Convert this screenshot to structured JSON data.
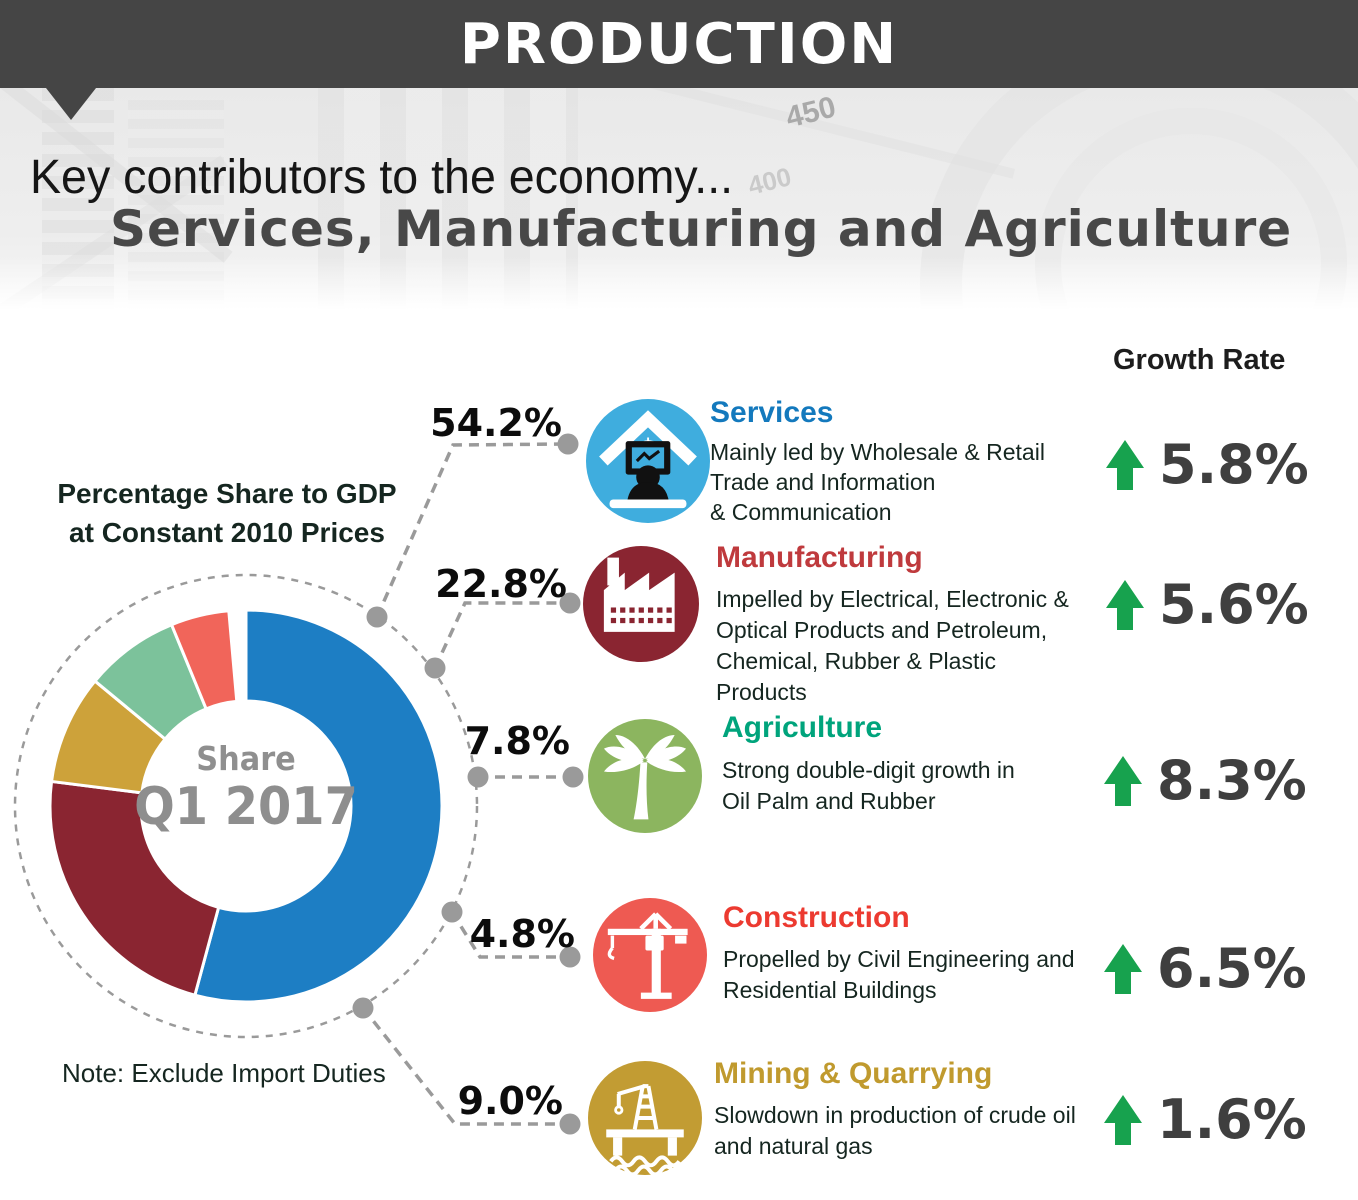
{
  "header": {
    "banner": "PRODUCTION",
    "headline_thin": "Key contributors to the economy...",
    "headline_bold": "Services, Manufacturing and Agriculture",
    "photo_figures": {
      "num1": "450",
      "num2": "400"
    }
  },
  "chart_heading": {
    "line1": "Percentage Share to GDP",
    "line2": "at Constant 2010 Prices"
  },
  "donut_center": {
    "line1": "Share",
    "line2": "Q1 2017"
  },
  "note": "Note: Exclude Import Duties",
  "growth_header": "Growth Rate",
  "sectors": [
    {
      "id": "services",
      "title": "Services",
      "title_color": "#1379bd",
      "icon_color": "#3fadde",
      "share_label": "54.2%",
      "growth_label": "5.8%",
      "description": "Mainly led by Wholesale & Retail\nTrade and Information\n& Communication"
    },
    {
      "id": "manufacturing",
      "title": "Manufacturing",
      "title_color": "#bf3a3d",
      "icon_color": "#8a2531",
      "share_label": "22.8%",
      "growth_label": "5.6%",
      "description": "Impelled by Electrical, Electronic &\nOptical Products and Petroleum,\nChemical, Rubber & Plastic\nProducts"
    },
    {
      "id": "agriculture",
      "title": "Agriculture",
      "title_color": "#00a47c",
      "icon_color": "#8cb55f",
      "share_label": "7.8%",
      "growth_label": "8.3%",
      "description": "Strong double-digit growth in\nOil Palm and Rubber"
    },
    {
      "id": "construction",
      "title": "Construction",
      "title_color": "#ec3a30",
      "icon_color": "#ee5a52",
      "share_label": "4.8%",
      "growth_label": "6.5%",
      "description": "Propelled by Civil Engineering and\nResidential Buildings"
    },
    {
      "id": "mining",
      "title": "Mining & Quarrying",
      "title_color": "#c09a2e",
      "icon_color": "#c29c33",
      "share_label": "9.0%",
      "growth_label": "1.6%",
      "description": "Slowdown in production of crude oil\nand natural gas"
    }
  ],
  "chart_data": {
    "type": "donut",
    "title": "Percentage Share to GDP at Constant 2010 Prices",
    "period": "Q1 2017",
    "note": "Exclude Import Duties",
    "unit": "% share of GDP",
    "legend_position": "callout-labels",
    "slices": [
      {
        "label": "Services",
        "value": 54.2,
        "color": "#1d7ec4"
      },
      {
        "label": "Manufacturing",
        "value": 22.8,
        "color": "#8a2531"
      },
      {
        "label": "Mining & Quarrying",
        "value": 9.0,
        "color": "#cda23a"
      },
      {
        "label": "Agriculture",
        "value": 7.8,
        "color": "#7cc29b"
      },
      {
        "label": "Construction",
        "value": 4.8,
        "color": "#f1655a"
      }
    ],
    "growth_rates": [
      {
        "label": "Services",
        "value": 5.8
      },
      {
        "label": "Manufacturing",
        "value": 5.6
      },
      {
        "label": "Agriculture",
        "value": 8.3
      },
      {
        "label": "Construction",
        "value": 6.5
      },
      {
        "label": "Mining & Quarrying",
        "value": 1.6
      }
    ],
    "accent_colors": {
      "growth_arrow": "#17a24e",
      "connector_gray": "#9a9a9a"
    }
  }
}
